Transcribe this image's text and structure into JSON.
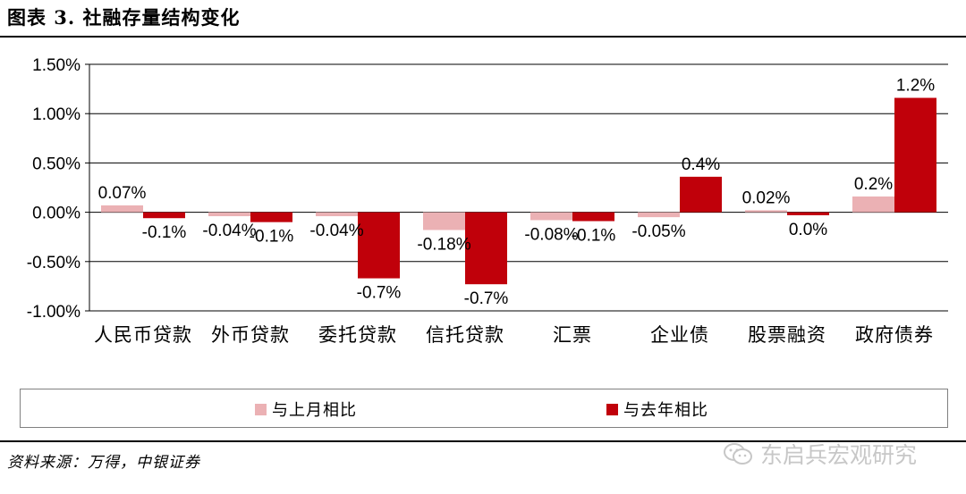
{
  "figure": {
    "title": "图表 3. 社融存量结构变化",
    "source": "资料来源：万得，中银证券",
    "watermark": "东启兵宏观研究"
  },
  "colors": {
    "series_prev_month": "#ebb1b4",
    "series_prev_year": "#c0000a",
    "grid": "#000000"
  },
  "chart_data": {
    "type": "bar",
    "categories": [
      "人民币贷款",
      "外币贷款",
      "委托贷款",
      "信托贷款",
      "汇票",
      "企业债",
      "股票融资",
      "政府债券"
    ],
    "series": [
      {
        "name": "与上月相比",
        "values": [
          0.07,
          -0.04,
          -0.04,
          -0.18,
          -0.08,
          -0.05,
          0.02,
          0.16
        ],
        "labels": [
          "0.07%",
          "-0.04%",
          "-0.04%",
          "-0.18%",
          "-0.08%",
          "-0.05%",
          "0.02%",
          "0.2%"
        ]
      },
      {
        "name": "与去年相比",
        "values": [
          -0.06,
          -0.1,
          -0.67,
          -0.73,
          -0.09,
          0.36,
          -0.03,
          1.16
        ],
        "labels": [
          "-0.1%",
          "-0.1%",
          "-0.7%",
          "-0.7%",
          "-0.1%",
          "0.4%",
          "0.0%",
          "1.2%"
        ]
      }
    ],
    "y_ticks": [
      "1.50%",
      "1.00%",
      "0.50%",
      "0.00%",
      "-0.50%",
      "-1.00%"
    ],
    "y_tick_values": [
      1.5,
      1.0,
      0.5,
      0.0,
      -0.5,
      -1.0
    ],
    "ylim": [
      -1.0,
      1.5
    ],
    "grid": true,
    "legend_position": "bottom"
  }
}
